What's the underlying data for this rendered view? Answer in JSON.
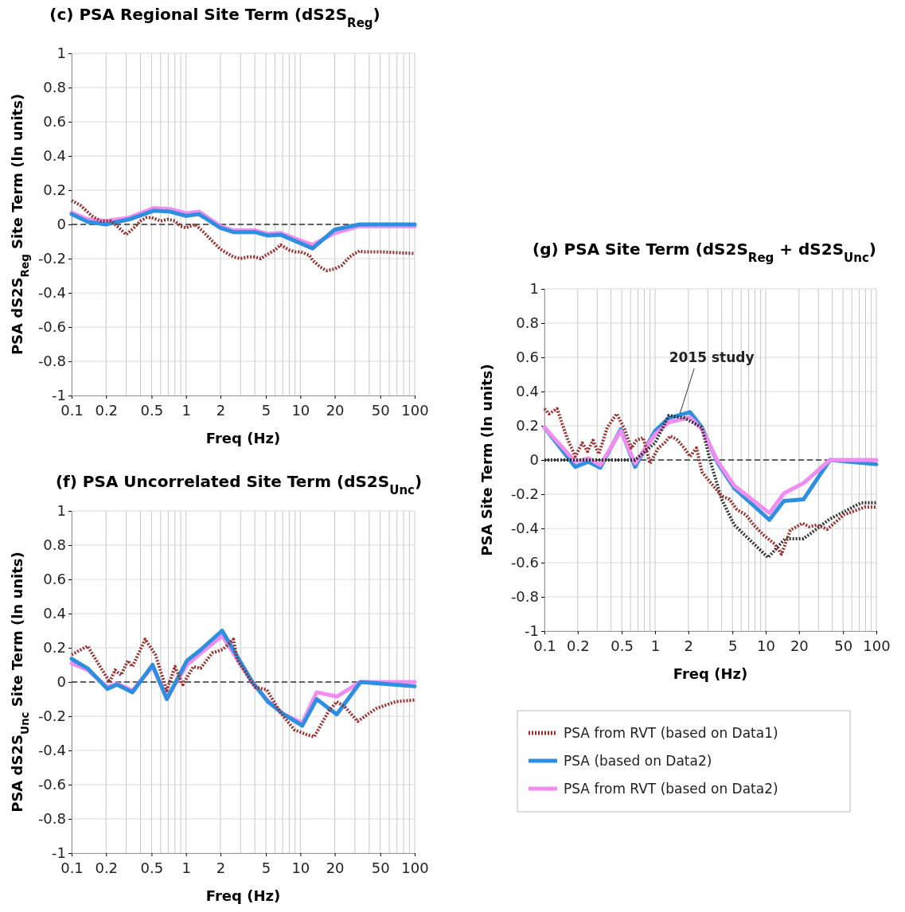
{
  "chart_data": [
    {
      "type": "line",
      "title": "(c) PSA Regional Site Term (dS2S$_{Reg}$)",
      "xlabel": "Freq (Hz)",
      "ylabel": "PSA dS2S$_{Reg}$ Site Term (ln units)",
      "log": "x",
      "grid": true,
      "xlim": [
        0.1,
        100
      ],
      "xticks": [
        0.1,
        0.2,
        0.5,
        1,
        2,
        5,
        10,
        20,
        50,
        100
      ],
      "ylim": [
        -1,
        1
      ],
      "yticks": [
        -1,
        -0.8,
        -0.6,
        -0.4,
        -0.2,
        0,
        0.2,
        0.4,
        0.6,
        0.8,
        1
      ],
      "ref_lines": [
        {
          "axis": "y",
          "value": 0,
          "color": "#333333",
          "line_style": "dashed"
        }
      ],
      "series": [
        {
          "color": "#9b2d2d",
          "line_style": "dotted",
          "x": [
            0.1,
            0.12,
            0.15,
            0.18,
            0.22,
            0.26,
            0.3,
            0.35,
            0.4,
            0.45,
            0.5,
            0.55,
            0.6,
            0.7,
            0.8,
            0.9,
            1,
            1.2,
            1.4,
            1.6,
            2,
            2.6,
            3,
            3.5,
            4,
            4.5,
            5,
            6,
            6.7,
            8,
            9,
            10,
            12,
            12.8,
            15,
            17,
            20,
            23,
            27,
            30,
            33,
            35,
            50,
            70,
            100
          ],
          "values": [
            0.14,
            0.11,
            0.05,
            0.02,
            0.02,
            -0.02,
            -0.06,
            -0.02,
            0.02,
            0.04,
            0.04,
            0.03,
            0.02,
            0.03,
            0.02,
            -0.01,
            -0.02,
            0,
            -0.04,
            -0.08,
            -0.145,
            -0.19,
            -0.2,
            -0.19,
            -0.19,
            -0.2,
            -0.18,
            -0.15,
            -0.12,
            -0.15,
            -0.16,
            -0.16,
            -0.18,
            -0.21,
            -0.25,
            -0.27,
            -0.26,
            -0.24,
            -0.19,
            -0.17,
            -0.155,
            -0.16,
            -0.16,
            -0.165,
            -0.17
          ]
        },
        {
          "color": "#f08ef0",
          "x": [
            0.1,
            0.138,
            0.199,
            0.32,
            0.52,
            0.72,
            1,
            1.3,
            2,
            2.6,
            4,
            5.2,
            6.7,
            12.8,
            20,
            33,
            100
          ],
          "values": [
            0.07,
            0.03,
            0.02,
            0.04,
            0.095,
            0.09,
            0.065,
            0.075,
            -0.01,
            -0.035,
            -0.035,
            -0.055,
            -0.05,
            -0.12,
            -0.05,
            -0.01,
            -0.01
          ]
        },
        {
          "color": "#2e8ee0",
          "x": [
            0.1,
            0.138,
            0.199,
            0.32,
            0.52,
            0.72,
            1,
            1.3,
            2,
            2.6,
            4,
            5.2,
            6.7,
            12.8,
            20,
            33,
            100
          ],
          "values": [
            0.06,
            0.015,
            0,
            0.03,
            0.08,
            0.075,
            0.05,
            0.06,
            -0.02,
            -0.045,
            -0.045,
            -0.065,
            -0.06,
            -0.14,
            -0.03,
            0,
            0
          ]
        }
      ]
    },
    {
      "type": "line",
      "title": "(f) PSA Uncorrelated Site Term (dS2S$_{Unc}$)",
      "xlabel": "Freq (Hz)",
      "ylabel": "PSA dS2S$_{Unc}$ Site Term (ln units)",
      "log": "x",
      "grid": true,
      "xlim": [
        0.1,
        100
      ],
      "xticks": [
        0.1,
        0.2,
        0.5,
        1,
        2,
        5,
        10,
        20,
        50,
        100
      ],
      "ylim": [
        -1,
        1
      ],
      "yticks": [
        -1,
        -0.8,
        -0.6,
        -0.4,
        -0.2,
        0,
        0.2,
        0.4,
        0.6,
        0.8,
        1
      ],
      "ref_lines": [
        {
          "axis": "y",
          "value": 0,
          "color": "#333333",
          "line_style": "dashed"
        }
      ],
      "series": [
        {
          "color": "#9b2d2d",
          "line_style": "dotted",
          "x": [
            0.1,
            0.138,
            0.17,
            0.215,
            0.24,
            0.27,
            0.31,
            0.34,
            0.44,
            0.54,
            0.68,
            0.8,
            0.94,
            1.16,
            1.34,
            1.7,
            2.1,
            2.6,
            2.8,
            4,
            5.1,
            6.7,
            8.9,
            11.6,
            13.2,
            17.7,
            20.8,
            24.5,
            31.7,
            46,
            68,
            100
          ],
          "values": [
            0.16,
            0.21,
            0.11,
            0,
            0.07,
            0.04,
            0.125,
            0.09,
            0.25,
            0.16,
            -0.05,
            0.09,
            -0.015,
            0.09,
            0.08,
            0.17,
            0.19,
            0.25,
            0.13,
            -0.03,
            -0.045,
            -0.18,
            -0.28,
            -0.31,
            -0.32,
            -0.17,
            -0.115,
            -0.145,
            -0.23,
            -0.155,
            -0.115,
            -0.105
          ]
        },
        {
          "color": "#f08ef0",
          "x": [
            0.1,
            0.138,
            0.205,
            0.25,
            0.34,
            0.51,
            0.68,
            1.02,
            1.3,
            2.07,
            3.8,
            5.2,
            7.2,
            10.4,
            13.9,
            20.8,
            33.6,
            100
          ],
          "values": [
            0.11,
            0.07,
            -0.03,
            -0.01,
            -0.05,
            0.09,
            -0.09,
            0.1,
            0.16,
            0.27,
            0,
            -0.11,
            -0.19,
            -0.24,
            -0.06,
            -0.085,
            0,
            0
          ]
        },
        {
          "color": "#2e8ee0",
          "x": [
            0.1,
            0.138,
            0.205,
            0.25,
            0.34,
            0.51,
            0.68,
            1.02,
            1.3,
            2.07,
            3.8,
            5.2,
            7.2,
            10.4,
            13.9,
            20.8,
            33.6,
            100
          ],
          "values": [
            0.135,
            0.08,
            -0.04,
            -0.015,
            -0.06,
            0.1,
            -0.1,
            0.125,
            0.18,
            0.3,
            0,
            -0.115,
            -0.19,
            -0.255,
            -0.1,
            -0.19,
            0,
            -0.025
          ]
        }
      ]
    },
    {
      "type": "line",
      "title": "(g) PSA Site Term (dS2S$_{Reg}$ + dS2S$_{Unc}$)",
      "xlabel": "Freq (Hz)",
      "ylabel": "PSA Site Term (ln units)",
      "log": "x",
      "grid": true,
      "legend": "bottom",
      "xlim": [
        0.1,
        100
      ],
      "xticks": [
        0.1,
        0.2,
        0.5,
        1,
        2,
        5,
        10,
        20,
        50,
        100
      ],
      "ylim": [
        -1,
        1
      ],
      "yticks": [
        -1,
        -0.8,
        -0.6,
        -0.4,
        -0.2,
        0,
        0.2,
        0.4,
        0.6,
        0.8,
        1
      ],
      "ref_lines": [
        {
          "axis": "y",
          "value": 0,
          "color": "#333333",
          "line_style": "dashed"
        }
      ],
      "series": [
        {
          "name": "2015 study",
          "color": "#333333",
          "line_style": "dotted",
          "x": [
            0.1,
            0.3,
            0.66,
            1,
            1.33,
            1.85,
            2.65,
            3.2,
            4,
            5.2,
            10.5,
            15,
            22,
            38,
            73,
            100
          ],
          "values": [
            0,
            0,
            0,
            0.1,
            0.26,
            0.245,
            0.19,
            -0.02,
            -0.23,
            -0.38,
            -0.57,
            -0.46,
            -0.46,
            -0.345,
            -0.25,
            -0.25
          ]
        },
        {
          "name": "PSA from RVT (based on Data1)",
          "color": "#9b2d2d",
          "line_style": "dotted",
          "x": [
            0.1,
            0.11,
            0.13,
            0.16,
            0.19,
            0.22,
            0.245,
            0.275,
            0.31,
            0.37,
            0.45,
            0.53,
            0.61,
            0.68,
            0.78,
            0.9,
            1.07,
            1.22,
            1.37,
            1.57,
            1.84,
            2.07,
            2.37,
            2.65,
            3.2,
            4,
            4.7,
            5.5,
            6.6,
            7.8,
            9.6,
            12,
            13.9,
            16.7,
            21.5,
            24.7,
            29,
            36,
            51,
            79,
            100
          ],
          "values": [
            0.3,
            0.27,
            0.3,
            0.13,
            0.02,
            0.1,
            0.05,
            0.115,
            0.035,
            0.19,
            0.27,
            0.18,
            0.07,
            0.115,
            0.13,
            -0.02,
            0.07,
            0.1,
            0.14,
            0.12,
            0.07,
            0.02,
            0.07,
            -0.07,
            -0.135,
            -0.21,
            -0.23,
            -0.29,
            -0.32,
            -0.38,
            -0.44,
            -0.49,
            -0.55,
            -0.41,
            -0.37,
            -0.39,
            -0.38,
            -0.405,
            -0.32,
            -0.275,
            -0.275
          ]
        },
        {
          "name": "PSA (based on Data2)",
          "color": "#2e8ee0",
          "x": [
            0.1,
            0.19,
            0.25,
            0.32,
            0.49,
            0.66,
            1,
            1.33,
            2.07,
            2.65,
            3.7,
            5.2,
            10.8,
            14.6,
            22,
            38,
            100
          ],
          "values": [
            0.19,
            -0.04,
            -0.01,
            -0.045,
            0.18,
            -0.04,
            0.17,
            0.245,
            0.28,
            0.19,
            -0.02,
            -0.165,
            -0.35,
            -0.24,
            -0.23,
            0,
            -0.025
          ]
        },
        {
          "name": "PSA from RVT (based on Data2)",
          "color": "#f08ef0",
          "x": [
            0.1,
            0.19,
            0.25,
            0.32,
            0.49,
            0.66,
            1,
            1.33,
            2.07,
            2.65,
            3.7,
            5.2,
            10.8,
            14.6,
            22,
            38,
            100
          ],
          "values": [
            0.19,
            -0.01,
            0.01,
            -0.03,
            0.17,
            -0.02,
            0.15,
            0.22,
            0.25,
            0.18,
            -0.01,
            -0.15,
            -0.31,
            -0.195,
            -0.135,
            0,
            0
          ]
        }
      ]
    }
  ]
}
